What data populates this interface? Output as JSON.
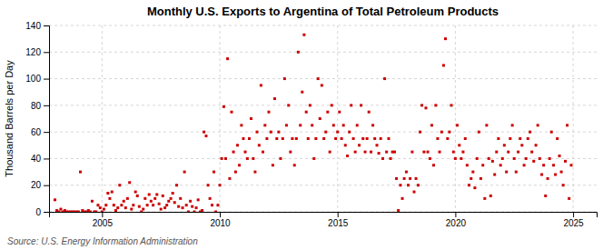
{
  "chart_data": {
    "type": "scatter",
    "title": "Monthly U.S. Exports to Argentina of Total Petroleum Products",
    "y_label": "Thousand Barrels per Day",
    "annotations": [
      "Source: U.S. Energy Information Administration"
    ],
    "color": "#CC0000",
    "marker": "square",
    "grid": true,
    "xlim": [
      2002.75,
      2026.0
    ],
    "ylim": [
      0,
      140
    ],
    "xticks": [
      2005,
      2010,
      2015,
      2020,
      2025
    ],
    "yticks": [
      0,
      20,
      40,
      60,
      80,
      100,
      120,
      140
    ],
    "x": [
      2003.0,
      2003.08,
      2003.17,
      2003.25,
      2003.33,
      2003.42,
      2003.5,
      2003.58,
      2003.67,
      2003.75,
      2003.83,
      2003.92,
      2004.0,
      2004.08,
      2004.17,
      2004.25,
      2004.33,
      2004.42,
      2004.5,
      2004.58,
      2004.67,
      2004.75,
      2004.83,
      2004.92,
      2005.0,
      2005.08,
      2005.17,
      2005.25,
      2005.33,
      2005.42,
      2005.5,
      2005.58,
      2005.67,
      2005.75,
      2005.83,
      2005.92,
      2006.0,
      2006.08,
      2006.17,
      2006.25,
      2006.33,
      2006.42,
      2006.5,
      2006.58,
      2006.67,
      2006.75,
      2006.83,
      2006.92,
      2007.0,
      2007.08,
      2007.17,
      2007.25,
      2007.33,
      2007.42,
      2007.5,
      2007.58,
      2007.67,
      2007.75,
      2007.83,
      2007.92,
      2008.0,
      2008.08,
      2008.17,
      2008.25,
      2008.33,
      2008.42,
      2008.5,
      2008.58,
      2008.67,
      2008.75,
      2008.83,
      2008.92,
      2009.0,
      2009.08,
      2009.17,
      2009.25,
      2009.33,
      2009.42,
      2009.5,
      2009.58,
      2009.67,
      2009.75,
      2009.83,
      2009.92,
      2010.0,
      2010.08,
      2010.17,
      2010.25,
      2010.33,
      2010.42,
      2010.5,
      2010.58,
      2010.67,
      2010.75,
      2010.83,
      2010.92,
      2011.0,
      2011.08,
      2011.17,
      2011.25,
      2011.33,
      2011.42,
      2011.5,
      2011.58,
      2011.67,
      2011.75,
      2011.83,
      2011.92,
      2012.0,
      2012.08,
      2012.17,
      2012.25,
      2012.33,
      2012.42,
      2012.5,
      2012.58,
      2012.67,
      2012.75,
      2012.83,
      2012.92,
      2013.0,
      2013.08,
      2013.17,
      2013.25,
      2013.33,
      2013.42,
      2013.5,
      2013.58,
      2013.67,
      2013.75,
      2013.83,
      2013.92,
      2014.0,
      2014.08,
      2014.17,
      2014.25,
      2014.33,
      2014.42,
      2014.5,
      2014.58,
      2014.67,
      2014.75,
      2014.83,
      2014.92,
      2015.0,
      2015.08,
      2015.17,
      2015.25,
      2015.33,
      2015.42,
      2015.5,
      2015.58,
      2015.67,
      2015.75,
      2015.83,
      2015.92,
      2016.0,
      2016.08,
      2016.17,
      2016.25,
      2016.33,
      2016.42,
      2016.5,
      2016.58,
      2016.67,
      2016.75,
      2016.83,
      2016.92,
      2017.0,
      2017.08,
      2017.17,
      2017.25,
      2017.33,
      2017.42,
      2017.5,
      2017.58,
      2017.67,
      2017.75,
      2017.83,
      2017.92,
      2018.0,
      2018.08,
      2018.17,
      2018.25,
      2018.33,
      2018.42,
      2018.5,
      2018.58,
      2018.67,
      2018.75,
      2018.83,
      2018.92,
      2019.0,
      2019.08,
      2019.17,
      2019.25,
      2019.33,
      2019.42,
      2019.5,
      2019.58,
      2019.67,
      2019.75,
      2019.83,
      2019.92,
      2020.0,
      2020.08,
      2020.17,
      2020.25,
      2020.33,
      2020.42,
      2020.5,
      2020.58,
      2020.67,
      2020.75,
      2020.83,
      2020.92,
      2021.0,
      2021.08,
      2021.17,
      2021.25,
      2021.33,
      2021.42,
      2021.5,
      2021.58,
      2021.67,
      2021.75,
      2021.83,
      2021.92,
      2022.0,
      2022.08,
      2022.17,
      2022.25,
      2022.33,
      2022.42,
      2022.5,
      2022.58,
      2022.67,
      2022.75,
      2022.83,
      2022.92,
      2023.0,
      2023.08,
      2023.17,
      2023.25,
      2023.33,
      2023.42,
      2023.5,
      2023.58,
      2023.67,
      2023.75,
      2023.83,
      2023.92,
      2024.0,
      2024.08,
      2024.17,
      2024.25,
      2024.33,
      2024.42,
      2024.5,
      2024.58,
      2024.67,
      2024.75,
      2024.83,
      2024.92
    ],
    "values": [
      9,
      1,
      0,
      2,
      0,
      1,
      0,
      0,
      0,
      0,
      0,
      0,
      0,
      30,
      1,
      0,
      0,
      1,
      0,
      8,
      0,
      0,
      5,
      3,
      0,
      2,
      5,
      14,
      10,
      15,
      5,
      1,
      3,
      20,
      5,
      8,
      3,
      10,
      22,
      2,
      5,
      15,
      12,
      4,
      0,
      2,
      10,
      5,
      13,
      8,
      5,
      10,
      13,
      6,
      2,
      12,
      3,
      5,
      8,
      10,
      14,
      7,
      20,
      4,
      10,
      3,
      30,
      5,
      0,
      8,
      4,
      0,
      3,
      9,
      0,
      1,
      60,
      57,
      20,
      10,
      5,
      30,
      0,
      5,
      20,
      40,
      79,
      40,
      115,
      25,
      75,
      45,
      30,
      50,
      35,
      65,
      55,
      45,
      40,
      55,
      70,
      40,
      30,
      60,
      50,
      95,
      45,
      65,
      55,
      75,
      60,
      35,
      85,
      55,
      60,
      40,
      55,
      100,
      65,
      80,
      45,
      55,
      35,
      55,
      120,
      65,
      90,
      133,
      75,
      55,
      80,
      65,
      40,
      55,
      100,
      70,
      95,
      55,
      60,
      75,
      45,
      80,
      65,
      55,
      60,
      75,
      55,
      65,
      50,
      42,
      60,
      80,
      55,
      45,
      65,
      50,
      80,
      55,
      45,
      55,
      75,
      45,
      65,
      55,
      50,
      44,
      55,
      40,
      100,
      45,
      55,
      40,
      45,
      45,
      25,
      1,
      20,
      10,
      25,
      30,
      20,
      25,
      45,
      15,
      25,
      20,
      60,
      80,
      45,
      78,
      45,
      40,
      65,
      35,
      80,
      55,
      45,
      60,
      110,
      130,
      55,
      60,
      80,
      45,
      40,
      65,
      50,
      40,
      45,
      55,
      35,
      20,
      25,
      30,
      18,
      40,
      60,
      25,
      35,
      10,
      65,
      40,
      12,
      38,
      28,
      45,
      55,
      35,
      40,
      50,
      30,
      45,
      55,
      65,
      40,
      30,
      45,
      55,
      50,
      35,
      40,
      55,
      60,
      45,
      38,
      50,
      65,
      40,
      28,
      35,
      12,
      25,
      40,
      60,
      35,
      28,
      55,
      42,
      30,
      20,
      38,
      65,
      10,
      35
    ]
  }
}
